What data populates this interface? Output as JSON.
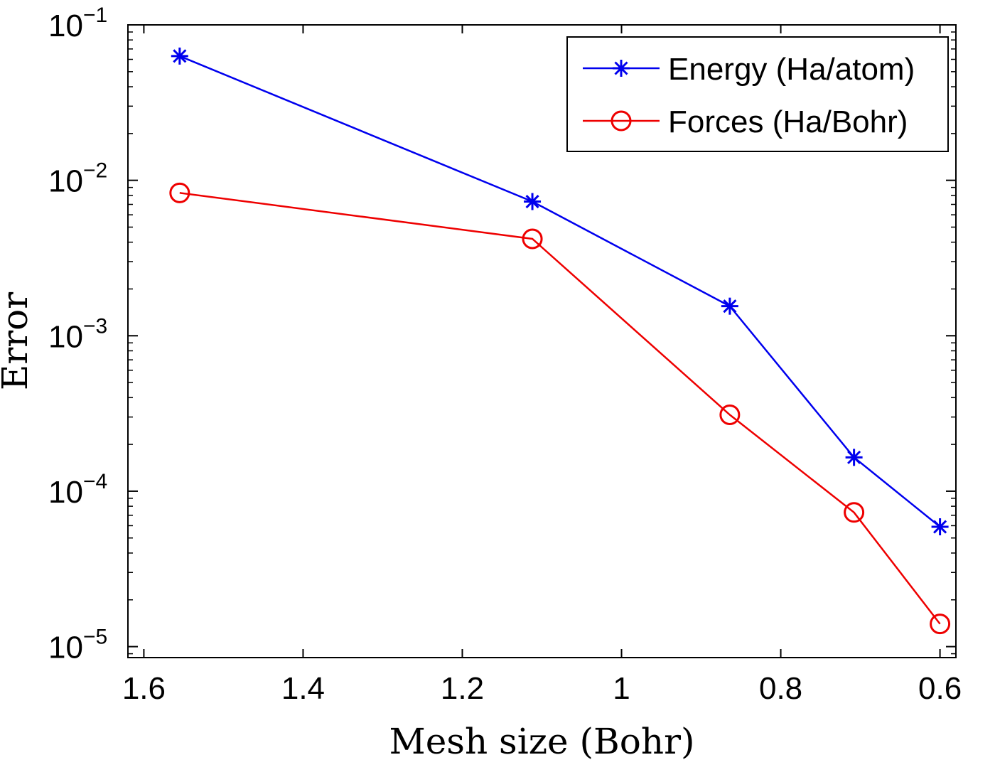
{
  "chart_data": {
    "type": "line",
    "x_axis": {
      "label": "Mesh size (Bohr)",
      "range": [
        1.62,
        0.58
      ],
      "reversed": true,
      "ticks": [
        1.6,
        1.4,
        1.2,
        1,
        0.8,
        0.6
      ],
      "tick_labels": [
        "1.6",
        "1.4",
        "1.2",
        "1",
        "0.8",
        "0.6"
      ]
    },
    "y_axis": {
      "label": "Error",
      "scale": "log",
      "range": [
        8.5e-06,
        0.1
      ],
      "ticks": [
        1e-05,
        0.0001,
        0.001,
        0.01,
        0.1
      ],
      "tick_labels": [
        {
          "base": "10",
          "exp": "−5"
        },
        {
          "base": "10",
          "exp": "−4"
        },
        {
          "base": "10",
          "exp": "−3"
        },
        {
          "base": "10",
          "exp": "−2"
        },
        {
          "base": "10",
          "exp": "−1"
        }
      ]
    },
    "grid": false,
    "legend_position": "top-right",
    "series": [
      {
        "name": "Energy (Ha/atom)",
        "color": "#0000ee",
        "marker": "asterisk",
        "x": [
          1.555,
          1.112,
          0.864,
          0.708,
          0.6
        ],
        "y": [
          0.063,
          0.0073,
          0.00155,
          0.000165,
          5.9e-05
        ]
      },
      {
        "name": "Forces (Ha/Bohr)",
        "color": "#ee0000",
        "marker": "circle",
        "x": [
          1.555,
          1.112,
          0.864,
          0.708,
          0.6
        ],
        "y": [
          0.0083,
          0.0042,
          0.00031,
          7.3e-05,
          1.4e-05
        ]
      }
    ]
  }
}
